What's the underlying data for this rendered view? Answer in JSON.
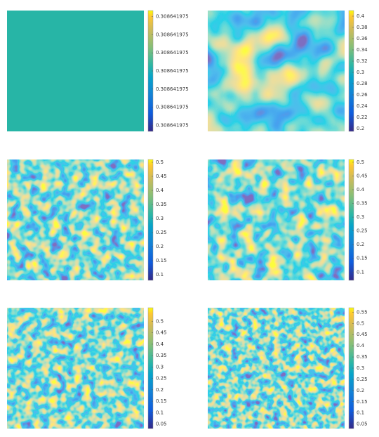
{
  "chart_data": [
    {
      "type": "heatmap",
      "ylim": [
        0.30864197495,
        0.30864197515
      ],
      "yticks": [
        {
          "value": 0.30864197496,
          "label": "0.308641975"
        },
        {
          "value": 0.30864197499,
          "label": "0.308641975"
        },
        {
          "value": 0.30864197502,
          "label": "0.308641975"
        },
        {
          "value": 0.30864197505,
          "label": "0.308641975"
        },
        {
          "value": 0.30864197508,
          "label": "0.308641975"
        },
        {
          "value": 0.30864197511,
          "label": "0.308641975"
        },
        {
          "value": 0.30864197514,
          "label": "0.308641975"
        }
      ]
    },
    {
      "type": "heatmap",
      "ylim": [
        0.195,
        0.41
      ],
      "yticks": [
        0.2,
        0.22,
        0.24,
        0.26,
        0.28,
        0.3,
        0.32,
        0.34,
        0.36,
        0.38,
        0.4
      ]
    },
    {
      "type": "heatmap",
      "ylim": [
        0.08,
        0.51
      ],
      "yticks": [
        0.1,
        0.15,
        0.2,
        0.25,
        0.3,
        0.35,
        0.4,
        0.45,
        0.5
      ]
    },
    {
      "type": "heatmap",
      "ylim": [
        0.07,
        0.51
      ],
      "yticks": [
        0.1,
        0.15,
        0.2,
        0.25,
        0.3,
        0.35,
        0.4,
        0.45,
        0.5
      ]
    },
    {
      "type": "heatmap",
      "ylim": [
        0.03,
        0.56
      ],
      "yticks": [
        0.05,
        0.1,
        0.15,
        0.2,
        0.25,
        0.3,
        0.35,
        0.4,
        0.45,
        0.5
      ]
    },
    {
      "type": "heatmap",
      "ylim": [
        0.03,
        0.57
      ],
      "yticks": [
        0.05,
        0.1,
        0.15,
        0.2,
        0.25,
        0.3,
        0.35,
        0.4,
        0.45,
        0.5,
        0.55
      ]
    }
  ]
}
